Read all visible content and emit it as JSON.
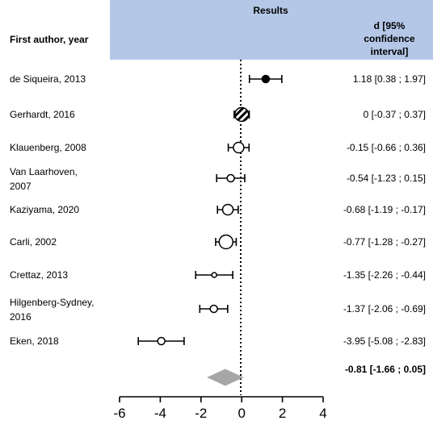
{
  "header": {
    "band_title": "Results",
    "col_author": "First author, year",
    "col_effect_lines": [
      "d [95%",
      "confidence",
      "interval]"
    ],
    "band_color": "#b4c7e7"
  },
  "chart_data": {
    "type": "forest",
    "xlim": [
      -6,
      4
    ],
    "xticks": [
      -6,
      -4,
      -2,
      0,
      2,
      4
    ],
    "tick_labels": [
      "-6",
      "-4",
      "-2",
      "0",
      "2",
      "4"
    ],
    "reference_line": 0,
    "studies": [
      {
        "label": [
          "de Siqueira, 2013"
        ],
        "d": 1.18,
        "lo": 0.38,
        "hi": 1.97,
        "ci_text": "1.18 [0.38 ; 1.97]",
        "marker": "filled",
        "weight": "small"
      },
      {
        "label": [
          "Gerhardt, 2016"
        ],
        "d": 0,
        "lo": -0.37,
        "hi": 0.37,
        "ci_text": "0 [-0.37 ; 0.37]",
        "marker": "hatched",
        "weight": "large"
      },
      {
        "label": [
          "Klauenberg, 2008"
        ],
        "d": -0.15,
        "lo": -0.66,
        "hi": 0.36,
        "ci_text": "-0.15 [-0.66 ; 0.36]",
        "marker": "open",
        "weight": "medium"
      },
      {
        "label": [
          "Van Laarhoven,",
          "2007"
        ],
        "d": -0.54,
        "lo": -1.23,
        "hi": 0.15,
        "ci_text": "-0.54 [-1.23 ; 0.15]",
        "marker": "open",
        "weight": "small"
      },
      {
        "label": [
          "Kaziyama, 2020"
        ],
        "d": -0.68,
        "lo": -1.19,
        "hi": -0.17,
        "ci_text": "-0.68 [-1.19 ; -0.17]",
        "marker": "open",
        "weight": "medium"
      },
      {
        "label": [
          "Carli, 2002"
        ],
        "d": -0.77,
        "lo": -1.28,
        "hi": -0.27,
        "ci_text": "-0.77 [-1.28 ; -0.27]",
        "marker": "open",
        "weight": "large"
      },
      {
        "label": [
          "Crettaz, 2013"
        ],
        "d": -1.35,
        "lo": -2.26,
        "hi": -0.44,
        "ci_text": "-1.35 [-2.26 ; -0.44]",
        "marker": "open",
        "weight": "tiny"
      },
      {
        "label": [
          "Hilgenberg-Sydney,",
          "2016"
        ],
        "d": -1.37,
        "lo": -2.06,
        "hi": -0.69,
        "ci_text": "-1.37 [-2.06 ; -0.69]",
        "marker": "open",
        "weight": "small"
      },
      {
        "label": [
          "Eken, 2018"
        ],
        "d": -3.95,
        "lo": -5.08,
        "hi": -2.83,
        "ci_text": "-3.95 [-5.08 ; -2.83]",
        "marker": "open",
        "weight": "small"
      }
    ],
    "summary": {
      "d": -0.81,
      "lo": -1.66,
      "hi": 0.05,
      "ci_text": "-0.81 [-1.66 ; 0.05]",
      "color": "#a6a6a6"
    }
  }
}
